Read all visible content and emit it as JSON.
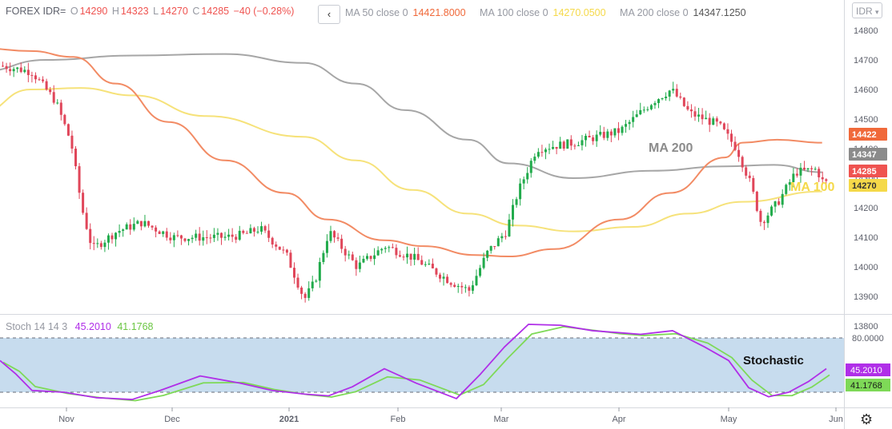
{
  "header": {
    "symbol": "FOREX IDR=",
    "o_label": "O",
    "o_value": "14290",
    "h_label": "H",
    "h_value": "14323",
    "l_label": "L",
    "l_value": "14270",
    "c_label": "C",
    "c_value": "14285",
    "change": "−40 (−0.28%)",
    "back_icon": "chevron-left-icon"
  },
  "currency_selector": "IDR",
  "ma_legend": [
    {
      "label": "MA 50 close 0",
      "value": "14421.8000",
      "color": "#f0693a"
    },
    {
      "label": "MA 100 close 0",
      "value": "14270.0500",
      "color": "#f5d949"
    },
    {
      "label": "MA 200 close 0",
      "value": "14347.1250",
      "color": "#555555"
    }
  ],
  "stoch_legend": {
    "label": "Stoch 14 14 3",
    "k": "45.2010",
    "d": "41.1768"
  },
  "chart_data": [
    {
      "type": "candlestick",
      "title": "",
      "yaxis_ticks": [
        13800,
        13900,
        14000,
        14100,
        14200,
        14300,
        14400,
        14500,
        14600,
        14700,
        14800
      ],
      "ylim": [
        13735,
        14860
      ],
      "xaxis_ticks": [
        "Nov",
        "Dec",
        "2021",
        "Feb",
        "Mar",
        "Apr",
        "May",
        "Jun"
      ],
      "grid": false,
      "ma_lines": [
        {
          "name": "MA 200",
          "color": "#a6a6a6",
          "points": [
            [
              "Oct 3",
              14660
            ],
            [
              "Oct 25",
              14700
            ],
            [
              "Nov 20",
              14715
            ],
            [
              "Dec 15",
              14720
            ],
            [
              "Jan 5",
              14690
            ],
            [
              "Jan 20",
              14620
            ],
            [
              "Feb 3",
              14530
            ],
            [
              "Feb 20",
              14430
            ],
            [
              "Mar 3",
              14350
            ],
            [
              "Mar 20",
              14300
            ],
            [
              "Apr 10",
              14325
            ],
            [
              "Apr 30",
              14340
            ],
            [
              "May 14",
              14345
            ],
            [
              "May 28",
              14320
            ]
          ]
        },
        {
          "name": "MA 100",
          "color": "#f6e27a",
          "points": [
            [
              "Oct 3",
              14520
            ],
            [
              "Oct 20",
              14600
            ],
            [
              "Nov 5",
              14605
            ],
            [
              "Nov 20",
              14580
            ],
            [
              "Dec 10",
              14510
            ],
            [
              "Jan 5",
              14440
            ],
            [
              "Jan 20",
              14360
            ],
            [
              "Feb 5",
              14260
            ],
            [
              "Feb 20",
              14180
            ],
            [
              "Mar 5",
              14140
            ],
            [
              "Mar 20",
              14120
            ],
            [
              "Apr 5",
              14135
            ],
            [
              "Apr 20",
              14180
            ],
            [
              "May 5",
              14220
            ],
            [
              "May 28",
              14255
            ]
          ]
        },
        {
          "name": "MA 50",
          "color": "#f28b64",
          "points": [
            [
              "Oct 3",
              14740
            ],
            [
              "Oct 20",
              14730
            ],
            [
              "Nov 3",
              14710
            ],
            [
              "Nov 15",
              14620
            ],
            [
              "Nov 30",
              14490
            ],
            [
              "Dec 15",
              14360
            ],
            [
              "Dec 31",
              14250
            ],
            [
              "Jan 12",
              14160
            ],
            [
              "Jan 28",
              14090
            ],
            [
              "Feb 8",
              14070
            ],
            [
              "Feb 22",
              14040
            ],
            [
              "Mar 3",
              14035
            ],
            [
              "Mar 15",
              14060
            ],
            [
              "Apr 1",
              14160
            ],
            [
              "Apr 15",
              14250
            ],
            [
              "Apr 30",
              14370
            ],
            [
              "May 5",
              14420
            ],
            [
              "May 15",
              14430
            ],
            [
              "May 28",
              14420
            ]
          ]
        }
      ],
      "price_labels": [
        {
          "value": "14422",
          "color": "#f0693a"
        },
        {
          "value": "14347",
          "color": "#8b8b8b"
        },
        {
          "value": "14285",
          "color": "#ef5350"
        },
        {
          "value": "14270",
          "color": "#f5d949"
        }
      ],
      "annotations": [
        {
          "text": "MA 200",
          "color": "#8c8c8c"
        },
        {
          "text": "MA 100",
          "color": "#f5d949"
        }
      ]
    },
    {
      "type": "line",
      "title": "",
      "ylim": [
        0,
        100
      ],
      "bands": [
        20,
        80
      ],
      "band_color": "#c7dcee",
      "yaxis_ticks": [
        "80.0000"
      ],
      "series_labels": [
        {
          "value": "45.2010",
          "color": "#b02fe8"
        },
        {
          "value": "41.1768",
          "color": "#7ed957"
        }
      ],
      "annotation": "Stochastic"
    }
  ]
}
